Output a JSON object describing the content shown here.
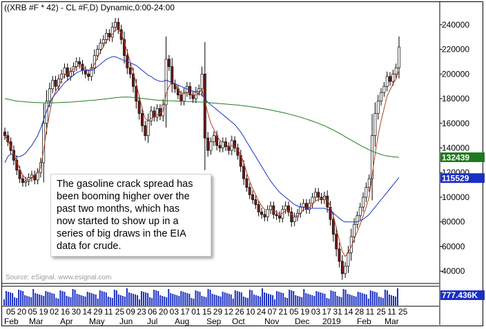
{
  "header": {
    "title": "((XRB #F * 42) - CL #F,D) Dynamic,0:00-24:00"
  },
  "callout": {
    "lines": [
      "The gasoline crack spread has",
      "been booming higher over the",
      "past two months, which has",
      "now started to show up in a",
      "series of big draws in the EIA",
      "data for crude."
    ]
  },
  "footer": {
    "source": "Source: eSignal. www.esignal.com"
  },
  "volume_badge": "777.436K",
  "chart_data": {
    "type": "candlestick",
    "ylim": [
      30000,
      250000
    ],
    "y_ticks": [
      40000,
      60000,
      80000,
      100000,
      120000,
      140000,
      160000,
      180000,
      200000,
      220000,
      240000
    ],
    "y_tick_labels": [
      "40000",
      "60000",
      "80000",
      "100000",
      "120000",
      "140000",
      "160000",
      "180000",
      "200000",
      "220000",
      "240000"
    ],
    "x_labels": [
      "05",
      "20",
      "05",
      "19",
      "02",
      "16",
      "30",
      "14",
      "29",
      "11",
      "25",
      "09",
      "23",
      "06",
      "20",
      "03",
      "17",
      "01",
      "15",
      "29",
      "12",
      "26",
      "10",
      "24",
      "07",
      "21",
      "05",
      "19",
      "03",
      "17",
      "31",
      "14",
      "28",
      "11",
      "25",
      "11",
      "25"
    ],
    "month_labels": [
      "Feb",
      "Mar",
      "Apr",
      "May",
      "Jun",
      "Jul",
      "Aug",
      "Sep",
      "Oct",
      "Nov",
      "Dec",
      "2019",
      "Feb",
      "Mar"
    ],
    "badges": [
      {
        "value": "132439",
        "color": "#1f7a1f"
      },
      {
        "value": "115529",
        "color": "#1a2fc4"
      }
    ],
    "series": [
      {
        "type": "candles",
        "up_color": "#ffffff",
        "down_color": "#7a1a1a",
        "closes": [
          150000,
          145000,
          138000,
          130000,
          122000,
          115000,
          112000,
          113000,
          116000,
          118000,
          114000,
          120000,
          128000,
          160000,
          178000,
          188000,
          195000,
          190000,
          196000,
          200000,
          205000,
          198000,
          202000,
          206000,
          210000,
          208000,
          203000,
          200000,
          198000,
          205000,
          215000,
          220000,
          225000,
          228000,
          233000,
          230000,
          238000,
          242000,
          236000,
          228000,
          215000,
          205000,
          200000,
          190000,
          178000,
          168000,
          158000,
          150000,
          162000,
          170000,
          165000,
          172000,
          166000,
          175000,
          212000,
          206000,
          192000,
          188000,
          183000,
          178000,
          185000,
          190000,
          183000,
          180000,
          186000,
          188000,
          200000,
          148000,
          138000,
          145000,
          150000,
          142000,
          140000,
          145000,
          141000,
          138000,
          146000,
          140000,
          134000,
          125000,
          115000,
          108000,
          102000,
          98000,
          94000,
          88000,
          86000,
          84000,
          90000,
          93000,
          86000,
          85000,
          83000,
          90000,
          93000,
          88000,
          80000,
          84000,
          87000,
          92000,
          95000,
          90000,
          95000,
          100000,
          104000,
          100000,
          98000,
          101000,
          92000,
          82000,
          70000,
          58000,
          48000,
          38000,
          44000,
          55000,
          68000,
          78000,
          85000,
          92000,
          100000,
          108000,
          115000,
          150000,
          168000,
          178000,
          185000,
          190000,
          198000,
          194000,
          200000,
          205000,
          222000
        ],
        "ma_short": [
          150000,
          146000,
          141000,
          135000,
          129000,
          123000,
          118000,
          115000,
          114000,
          116000,
          118000,
          120000,
          124000,
          138000,
          155000,
          168000,
          180000,
          186000,
          190000,
          195000,
          199000,
          200000,
          202000,
          204000,
          206000,
          207000,
          206000,
          204000,
          203000,
          204000,
          208000,
          213000,
          218000,
          222000,
          227000,
          229000,
          232000,
          236000,
          236000,
          233000,
          226000,
          218000,
          210000,
          202000,
          192000,
          182000,
          172000,
          164000,
          162000,
          164000,
          165000,
          167000,
          168000,
          170000,
          184000,
          190000,
          193000,
          192000,
          188000,
          184000,
          184000,
          185000,
          184000,
          183000,
          183000,
          184000,
          188000,
          178000,
          168000,
          160000,
          155000,
          150000,
          146000,
          145000,
          143000,
          141000,
          142000,
          141000,
          139000,
          134000,
          128000,
          120000,
          113000,
          107000,
          102000,
          97000,
          93000,
          90000,
          90000,
          90000,
          89000,
          88000,
          86000,
          87000,
          89000,
          89000,
          86000,
          85000,
          85000,
          87000,
          90000,
          90000,
          92000,
          94000,
          97000,
          98000,
          99000,
          100000,
          98000,
          93000,
          85000,
          75000,
          65000,
          56000,
          52000,
          55000,
          60000,
          66000,
          72000,
          78000,
          85000,
          92000,
          100000,
          118000,
          135000,
          150000,
          162000,
          172000,
          182000,
          187000,
          192000,
          196000,
          203000
        ],
        "ma_mid": [
          128000,
          133000,
          135000,
          134000,
          133000,
          133000,
          134000,
          136000,
          139000,
          142000,
          146000,
          150000,
          156000,
          163000,
          170000,
          176000,
          181000,
          184000,
          187000,
          190000,
          193000,
          195000,
          197000,
          199000,
          201000,
          202000,
          203000,
          203000,
          203000,
          203000,
          204000,
          206000,
          208000,
          210000,
          212000,
          213000,
          214000,
          214000,
          213000,
          212000,
          211000,
          210000,
          209000,
          208000,
          207000,
          205000,
          203000,
          201000,
          199000,
          198000,
          196000,
          195000,
          194000,
          194000,
          195000,
          194000,
          193000,
          192000,
          191000,
          190000,
          189000,
          188000,
          187000,
          186000,
          185000,
          184000,
          183000,
          180000,
          177000,
          175000,
          173000,
          171000,
          169000,
          167000,
          165000,
          163000,
          161000,
          159000,
          156000,
          153000,
          149000,
          145000,
          141000,
          137000,
          133000,
          129000,
          125000,
          121000,
          117000,
          113000,
          110000,
          107000,
          104000,
          102000,
          100000,
          98000,
          96000,
          94000,
          93000,
          92000,
          92000,
          91000,
          91000,
          91000,
          91000,
          91000,
          91000,
          91000,
          90000,
          89000,
          87000,
          85000,
          83000,
          81000,
          80000,
          80000,
          80000,
          80000,
          80000,
          81000,
          82000,
          84000,
          86000,
          89000,
          92000,
          95000,
          98000,
          101000,
          104000,
          107000,
          110000,
          113000,
          116000
        ],
        "ma_long": [
          180000,
          179500,
          179000,
          178500,
          178000,
          177800,
          177600,
          177400,
          177200,
          177000,
          176900,
          176800,
          176700,
          176600,
          176600,
          176600,
          176600,
          176700,
          176800,
          176900,
          177000,
          177100,
          177200,
          177400,
          177600,
          177800,
          178000,
          178200,
          178400,
          178600,
          178800,
          179000,
          179300,
          179600,
          179900,
          180200,
          180500,
          180800,
          181000,
          181200,
          181300,
          181300,
          181200,
          181000,
          180800,
          180500,
          180200,
          179900,
          179600,
          179300,
          179000,
          178800,
          178600,
          178500,
          178400,
          178300,
          178200,
          178100,
          178000,
          177900,
          177800,
          177700,
          177600,
          177500,
          177400,
          177300,
          177200,
          177000,
          176800,
          176600,
          176400,
          176200,
          176000,
          175800,
          175600,
          175400,
          175200,
          175000,
          174800,
          174500,
          174200,
          173900,
          173600,
          173300,
          172900,
          172500,
          172100,
          171700,
          171300,
          170800,
          170300,
          169800,
          169300,
          168800,
          168200,
          167600,
          167000,
          166300,
          165600,
          164900,
          164200,
          163400,
          162600,
          161800,
          160900,
          160000,
          159000,
          158000,
          156900,
          155700,
          154500,
          153200,
          151900,
          150500,
          149100,
          147700,
          146300,
          144900,
          143500,
          142200,
          140900,
          139700,
          138500,
          137400,
          136400,
          135500,
          134700,
          134000,
          133500,
          133100,
          132800,
          132600,
          132439
        ],
        "ma_colors": [
          "#b3401a",
          "#1a2fc4",
          "#1f7a1f"
        ]
      }
    ],
    "volume_color": "#1a2fc4",
    "grid": false
  }
}
